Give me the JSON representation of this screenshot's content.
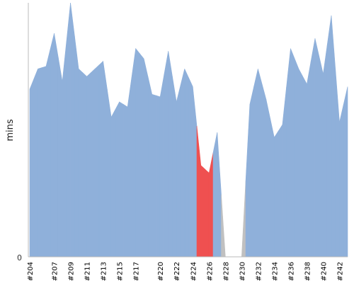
{
  "chart_data": {
    "type": "area",
    "title": "",
    "xlabel": "",
    "ylabel": "mins",
    "ylim": [
      0,
      100
    ],
    "y_tick_labels": [
      "0"
    ],
    "grid": false,
    "legend": "none",
    "builds": [
      "#204",
      "#205",
      "#206",
      "#207",
      "#208",
      "#209",
      "#210",
      "#211",
      "#212",
      "#213",
      "#214",
      "#215",
      "#216",
      "#217",
      "#218",
      "#219",
      "#220",
      "#221",
      "#222",
      "#223",
      "#224",
      "#225",
      "#226",
      "#227",
      "#228",
      "#229",
      "#230",
      "#231",
      "#232",
      "#233",
      "#234",
      "#235",
      "#236",
      "#237",
      "#238",
      "#239",
      "#240",
      "#241",
      "#242",
      "#243"
    ],
    "x_tick_labels": [
      "#204",
      "#207",
      "#209",
      "#211",
      "#213",
      "#215",
      "#217",
      "#220",
      "#222",
      "#224",
      "#226",
      "#228",
      "#230",
      "#232",
      "#234",
      "#236",
      "#238",
      "#240",
      "#242"
    ],
    "values": [
      66,
      74,
      75,
      88,
      69,
      100,
      74,
      71,
      74,
      77,
      55,
      61,
      59,
      82,
      78,
      64,
      63,
      81,
      61,
      74,
      67,
      36,
      33,
      49,
      0,
      0,
      0,
      60,
      74,
      62,
      47,
      52,
      82,
      74,
      68,
      86,
      72,
      95,
      53,
      67
    ],
    "status": [
      "success",
      "success",
      "success",
      "success",
      "success",
      "success",
      "success",
      "success",
      "success",
      "success",
      "success",
      "success",
      "success",
      "success",
      "success",
      "success",
      "success",
      "success",
      "success",
      "success",
      "success",
      "failed",
      "failed",
      "success",
      "aborted",
      "aborted",
      "aborted",
      "success",
      "success",
      "success",
      "success",
      "success",
      "success",
      "success",
      "success",
      "success",
      "success",
      "success",
      "success",
      "success"
    ],
    "colors": {
      "success": "#8fb0da",
      "failed": "#ef5050",
      "aborted": "#c0c0c0",
      "axis": "#bbbbbb"
    }
  }
}
